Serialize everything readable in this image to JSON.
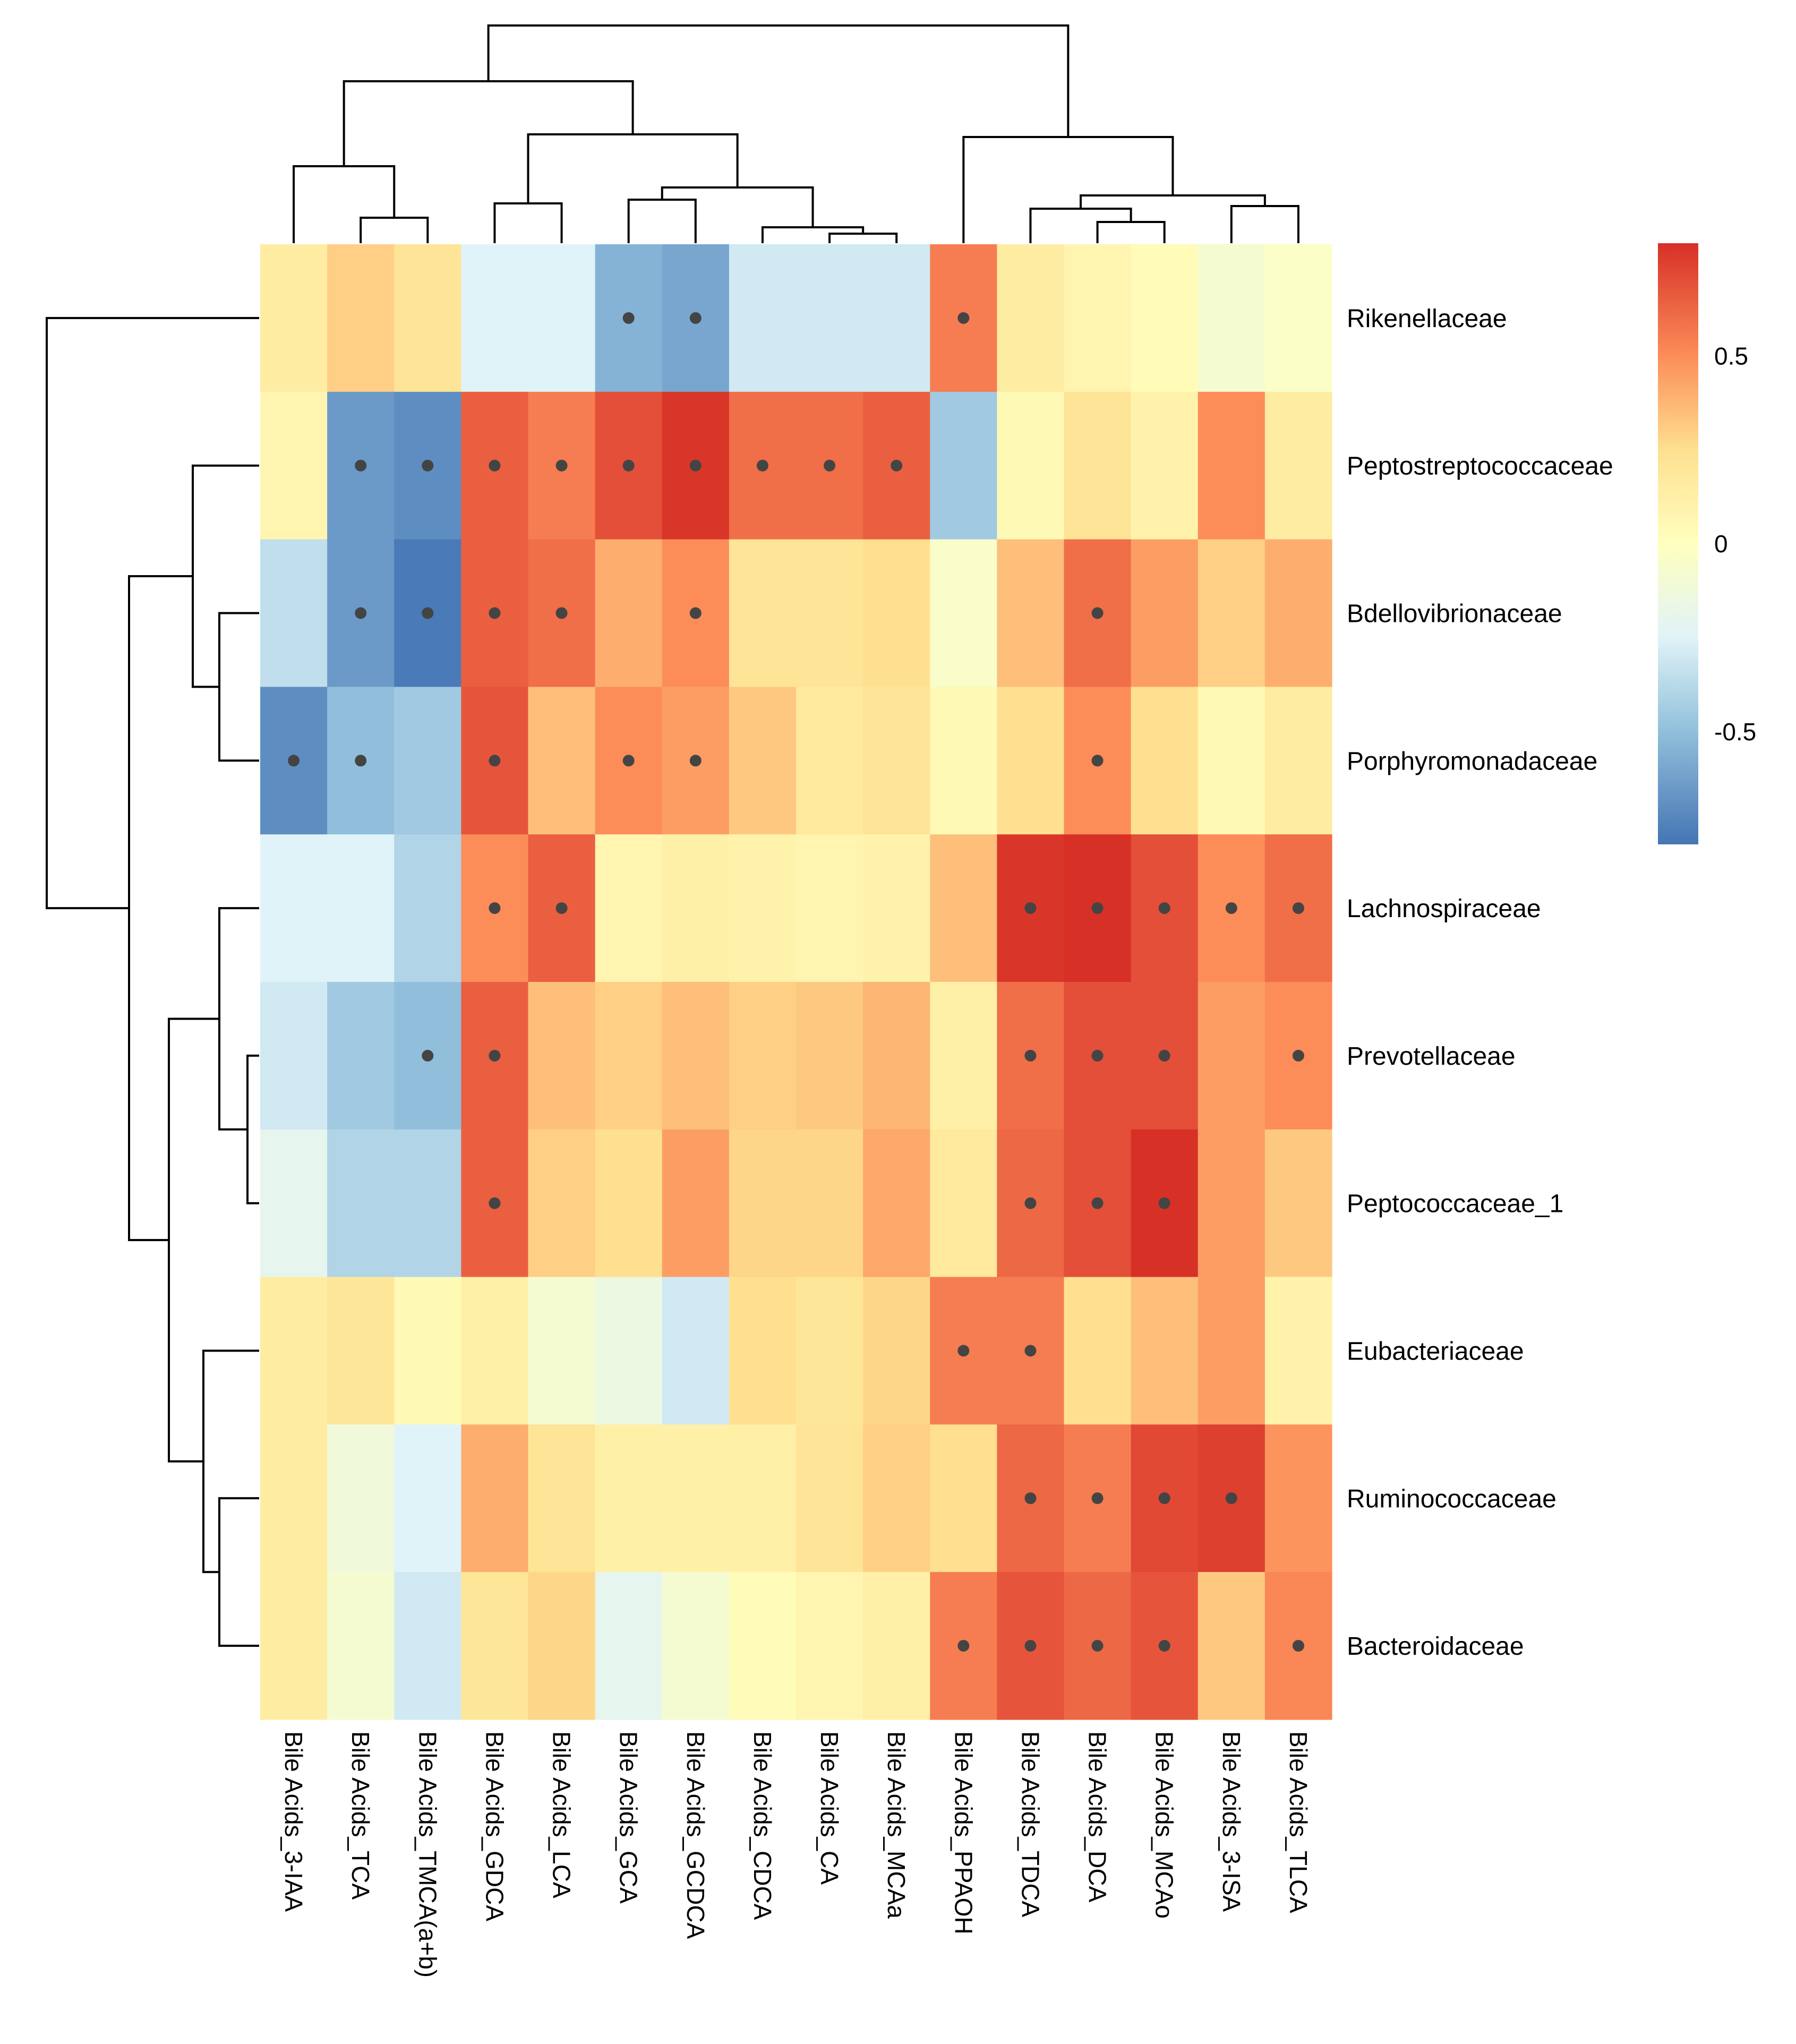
{
  "chart_data": {
    "type": "heatmap",
    "title": "",
    "rows": [
      "Rikenellaceae",
      "Peptostreptococcaceae",
      "Bdellovibrionaceae",
      "Porphyromonadaceae",
      "Lachnospiraceae",
      "Prevotellaceae",
      "Peptococcaceae_1",
      "Eubacteriaceae",
      "Ruminococcaceae",
      "Bacteroidaceae"
    ],
    "columns": [
      "Bile Acids_3-IAA",
      "Bile Acids_TCA",
      "Bile Acids_TMCA(a+b)",
      "Bile Acids_GDCA",
      "Bile Acids_LCA",
      "Bile Acids_GCA",
      "Bile Acids_GCDCA",
      "Bile Acids_CDCA",
      "Bile Acids_CA",
      "Bile Acids_MCAa",
      "Bile Acids_PPAOH",
      "Bile Acids_TDCA",
      "Bile Acids_DCA",
      "Bile Acids_MCAo",
      "Bile Acids_3-ISA",
      "Bile Acids_TLCA"
    ],
    "values": [
      [
        0.15,
        0.3,
        0.22,
        -0.25,
        -0.25,
        -0.55,
        -0.6,
        -0.3,
        -0.3,
        -0.3,
        0.55,
        0.15,
        0.08,
        0.03,
        -0.08,
        -0.03
      ],
      [
        0.08,
        -0.65,
        -0.7,
        0.65,
        0.55,
        0.7,
        0.78,
        0.6,
        0.6,
        0.65,
        -0.45,
        0.05,
        0.22,
        0.1,
        0.5,
        0.15
      ],
      [
        -0.35,
        -0.65,
        -0.78,
        0.65,
        0.6,
        0.4,
        0.5,
        0.22,
        0.22,
        0.25,
        -0.05,
        0.35,
        0.6,
        0.45,
        0.3,
        0.4
      ],
      [
        -0.7,
        -0.5,
        -0.45,
        0.68,
        0.35,
        0.5,
        0.45,
        0.32,
        0.18,
        0.22,
        0.05,
        0.25,
        0.5,
        0.25,
        0.05,
        0.15
      ],
      [
        -0.25,
        -0.25,
        -0.4,
        0.5,
        0.65,
        0.08,
        0.12,
        0.1,
        0.08,
        0.1,
        0.35,
        0.78,
        0.8,
        0.7,
        0.5,
        0.6
      ],
      [
        -0.3,
        -0.45,
        -0.5,
        0.65,
        0.35,
        0.3,
        0.35,
        0.3,
        0.32,
        0.38,
        0.12,
        0.6,
        0.7,
        0.7,
        0.45,
        0.5
      ],
      [
        -0.2,
        -0.4,
        -0.4,
        0.65,
        0.3,
        0.25,
        0.45,
        0.28,
        0.28,
        0.42,
        0.18,
        0.62,
        0.7,
        0.8,
        0.45,
        0.32
      ],
      [
        0.15,
        0.2,
        0.05,
        0.12,
        -0.08,
        -0.15,
        -0.3,
        0.25,
        0.2,
        0.28,
        0.55,
        0.55,
        0.25,
        0.35,
        0.45,
        0.1
      ],
      [
        0.15,
        -0.12,
        -0.25,
        0.4,
        0.22,
        0.12,
        0.12,
        0.12,
        0.22,
        0.3,
        0.25,
        0.62,
        0.55,
        0.72,
        0.75,
        0.48
      ],
      [
        0.15,
        -0.08,
        -0.3,
        0.2,
        0.28,
        -0.2,
        -0.08,
        0.03,
        0.08,
        0.12,
        0.55,
        0.68,
        0.62,
        0.68,
        0.32,
        0.52
      ]
    ],
    "significant": [
      [
        5,
        6,
        10
      ],
      [
        1,
        2,
        3,
        4,
        5,
        6,
        7,
        8,
        9
      ],
      [
        1,
        2,
        3,
        4,
        6,
        12
      ],
      [
        0,
        1,
        3,
        5,
        6,
        12
      ],
      [
        3,
        4,
        11,
        12,
        13,
        14,
        15
      ],
      [
        2,
        3,
        11,
        12,
        13,
        15
      ],
      [
        3,
        11,
        12,
        13
      ],
      [
        10,
        11
      ],
      [
        11,
        12,
        13,
        14
      ],
      [
        10,
        11,
        12,
        13,
        15
      ]
    ],
    "color_scale": {
      "stops": [
        {
          "value": -0.8,
          "color": "#4575b4"
        },
        {
          "value": -0.5,
          "color": "#91bfdb"
        },
        {
          "value": -0.25,
          "color": "#e0f3f8"
        },
        {
          "value": 0,
          "color": "#ffffbf"
        },
        {
          "value": 0.25,
          "color": "#fee090"
        },
        {
          "value": 0.5,
          "color": "#fc8d59"
        },
        {
          "value": 0.8,
          "color": "#d73027"
        }
      ],
      "range": [
        -0.8,
        0.8
      ],
      "legend_ticks": [
        {
          "value": 0.5,
          "label": "0.5"
        },
        {
          "value": 0,
          "label": "0"
        },
        {
          "value": -0.5,
          "label": "-0.5"
        }
      ]
    },
    "dot_color": "#444444",
    "column_dendrogram_order": [
      0,
      1,
      2,
      3,
      4,
      5,
      6,
      7,
      8,
      9,
      10,
      11,
      12,
      13,
      14,
      15
    ],
    "row_dendrogram_order": [
      0,
      1,
      2,
      3,
      4,
      5,
      6,
      7,
      8,
      9
    ],
    "legend_position": "right"
  }
}
